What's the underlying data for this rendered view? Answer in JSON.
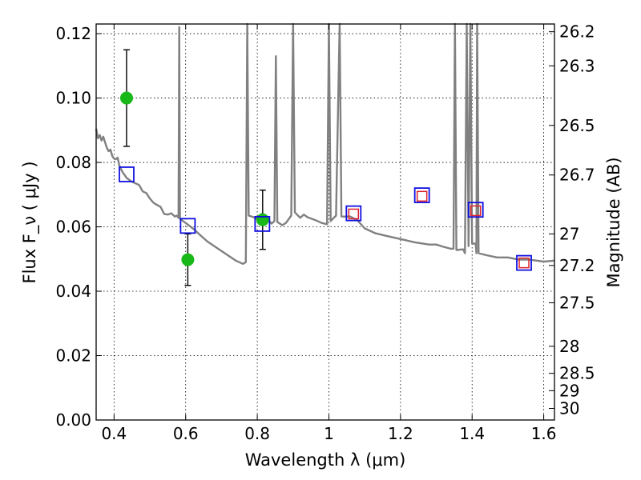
{
  "chart_data": {
    "type": "scatter",
    "title": "",
    "xlabel": "Wavelength  λ (μm)",
    "ylabel": "Flux  F_ν  ( μJy )",
    "ylabel_right": "Magnitude (AB)",
    "xlim": [
      0.35,
      1.63
    ],
    "ylim": [
      0.0,
      0.123
    ],
    "grid": true,
    "x_ticks": [
      0.4,
      0.6,
      0.8,
      1.0,
      1.2,
      1.4,
      1.6
    ],
    "x_tick_labels": [
      "0.4",
      "0.6",
      "0.8",
      "1",
      "1.2",
      "1.4",
      "1.6"
    ],
    "y_ticks": [
      0.0,
      0.02,
      0.04,
      0.06,
      0.08,
      0.1,
      0.12
    ],
    "y_tick_labels": [
      "0.00",
      "0.02",
      "0.04",
      "0.06",
      "0.08",
      "0.10",
      "0.12"
    ],
    "right_ticks": [
      {
        "label": "26.2",
        "flux": 0.1206
      },
      {
        "label": "26.3",
        "flux": 0.11
      },
      {
        "label": "26.5",
        "flux": 0.0915
      },
      {
        "label": "26.7",
        "flux": 0.0761
      },
      {
        "label": "27",
        "flux": 0.0578
      },
      {
        "label": "27.2",
        "flux": 0.048
      },
      {
        "label": "27.5",
        "flux": 0.0364
      },
      {
        "label": "28",
        "flux": 0.0229
      },
      {
        "label": "28.5",
        "flux": 0.0145
      },
      {
        "label": "29",
        "flux": 0.0091
      },
      {
        "label": "30",
        "flux": 0.0036
      }
    ],
    "series": [
      {
        "type": "line",
        "color": "#808080",
        "points": [
          [
            0.35,
            0.0905
          ],
          [
            0.355,
            0.0875
          ],
          [
            0.36,
            0.0885
          ],
          [
            0.365,
            0.0868
          ],
          [
            0.37,
            0.088
          ],
          [
            0.375,
            0.0862
          ],
          [
            0.38,
            0.0845
          ],
          [
            0.385,
            0.0835
          ],
          [
            0.39,
            0.084
          ],
          [
            0.395,
            0.082
          ],
          [
            0.4,
            0.0812
          ],
          [
            0.405,
            0.081
          ],
          [
            0.41,
            0.0815
          ],
          [
            0.415,
            0.079
          ],
          [
            0.42,
            0.0778
          ],
          [
            0.425,
            0.0768
          ],
          [
            0.43,
            0.076
          ],
          [
            0.435,
            0.0752
          ],
          [
            0.44,
            0.0748
          ],
          [
            0.45,
            0.074
          ],
          [
            0.46,
            0.0735
          ],
          [
            0.47,
            0.073
          ],
          [
            0.48,
            0.071
          ],
          [
            0.49,
            0.0705
          ],
          [
            0.5,
            0.0688
          ],
          [
            0.51,
            0.0675
          ],
          [
            0.52,
            0.0668
          ],
          [
            0.53,
            0.0662
          ],
          [
            0.54,
            0.064
          ],
          [
            0.55,
            0.0638
          ],
          [
            0.56,
            0.0642
          ],
          [
            0.57,
            0.0632
          ],
          [
            0.575,
            0.0635
          ],
          [
            0.58,
            0.0628
          ],
          [
            0.582,
            0.122
          ],
          [
            0.584,
            0.0625
          ],
          [
            0.6,
            0.0612
          ],
          [
            0.62,
            0.0595
          ],
          [
            0.64,
            0.0575
          ],
          [
            0.66,
            0.0555
          ],
          [
            0.68,
            0.054
          ],
          [
            0.7,
            0.0525
          ],
          [
            0.72,
            0.051
          ],
          [
            0.74,
            0.0495
          ],
          [
            0.76,
            0.0485
          ],
          [
            0.768,
            0.049
          ],
          [
            0.772,
            0.123
          ],
          [
            0.776,
            0.0635
          ],
          [
            0.79,
            0.063
          ],
          [
            0.805,
            0.062
          ],
          [
            0.812,
            0.064
          ],
          [
            0.818,
            0.0618
          ],
          [
            0.83,
            0.0622
          ],
          [
            0.84,
            0.061
          ],
          [
            0.848,
            0.0618
          ],
          [
            0.852,
            0.113
          ],
          [
            0.856,
            0.0615
          ],
          [
            0.87,
            0.0605
          ],
          [
            0.88,
            0.0612
          ],
          [
            0.895,
            0.0635
          ],
          [
            0.9,
            0.123
          ],
          [
            0.905,
            0.0645
          ],
          [
            0.92,
            0.0628
          ],
          [
            0.93,
            0.0638
          ],
          [
            0.94,
            0.063
          ],
          [
            0.96,
            0.0622
          ],
          [
            0.98,
            0.0612
          ],
          [
            0.995,
            0.0608
          ],
          [
            1.0,
            0.123
          ],
          [
            1.005,
            0.0618
          ],
          [
            1.02,
            0.0635
          ],
          [
            1.03,
            0.123
          ],
          [
            1.035,
            0.0632
          ],
          [
            1.06,
            0.0632
          ],
          [
            1.08,
            0.062
          ],
          [
            1.1,
            0.0595
          ],
          [
            1.13,
            0.058
          ],
          [
            1.16,
            0.0572
          ],
          [
            1.2,
            0.0562
          ],
          [
            1.24,
            0.0552
          ],
          [
            1.28,
            0.0545
          ],
          [
            1.3,
            0.0545
          ],
          [
            1.32,
            0.0538
          ],
          [
            1.34,
            0.0532
          ],
          [
            1.348,
            0.0532
          ],
          [
            1.352,
            0.123
          ],
          [
            1.356,
            0.0528
          ],
          [
            1.375,
            0.053
          ],
          [
            1.38,
            0.0518
          ],
          [
            1.385,
            0.123
          ],
          [
            1.39,
            0.054
          ],
          [
            1.395,
            0.123
          ],
          [
            1.4,
            0.0548
          ],
          [
            1.41,
            0.0548
          ],
          [
            1.412,
            0.0518
          ],
          [
            1.414,
            0.123
          ],
          [
            1.418,
            0.0518
          ],
          [
            1.44,
            0.0512
          ],
          [
            1.47,
            0.0505
          ],
          [
            1.5,
            0.0505
          ],
          [
            1.53,
            0.0498
          ],
          [
            1.56,
            0.0498
          ],
          [
            1.6,
            0.0492
          ],
          [
            1.63,
            0.0495
          ]
        ]
      },
      {
        "type": "points",
        "marker": "filled-circle",
        "color": "#18b818",
        "points": [
          {
            "x": 0.435,
            "y": 0.1,
            "err": 0.015
          },
          {
            "x": 0.606,
            "y": 0.0498,
            "err": 0.008
          },
          {
            "x": 0.815,
            "y": 0.0622,
            "err": 0.0092
          }
        ]
      },
      {
        "type": "points",
        "marker": "open-square",
        "color": "#1010e0",
        "points": [
          {
            "x": 0.435,
            "y": 0.0763
          },
          {
            "x": 0.606,
            "y": 0.0603
          },
          {
            "x": 0.814,
            "y": 0.0609
          },
          {
            "x": 1.069,
            "y": 0.0642
          },
          {
            "x": 1.26,
            "y": 0.0698
          },
          {
            "x": 1.41,
            "y": 0.0653
          },
          {
            "x": 1.545,
            "y": 0.0488
          }
        ]
      },
      {
        "type": "points",
        "marker": "small-open-square",
        "color": "#e0202a",
        "points": [
          {
            "x": 1.069,
            "y": 0.064
          },
          {
            "x": 1.26,
            "y": 0.0695
          },
          {
            "x": 1.41,
            "y": 0.065
          },
          {
            "x": 1.545,
            "y": 0.0488
          }
        ]
      }
    ]
  }
}
